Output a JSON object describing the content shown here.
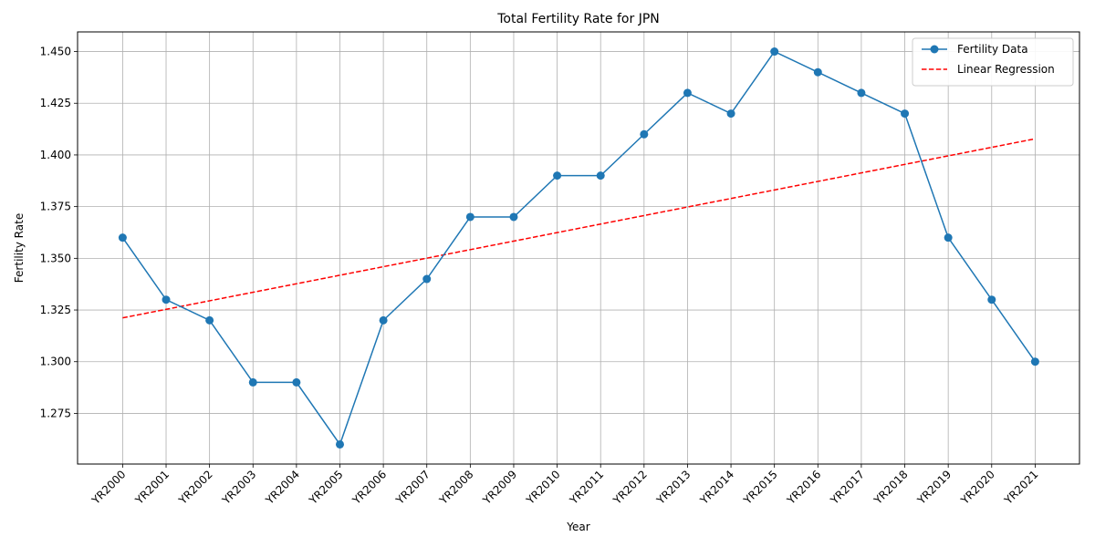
{
  "chart_data": {
    "type": "line",
    "title": "Total Fertility Rate for JPN",
    "xlabel": "Year",
    "ylabel": "Fertility Rate",
    "categories": [
      "YR2000",
      "YR2001",
      "YR2002",
      "YR2003",
      "YR2004",
      "YR2005",
      "YR2006",
      "YR2007",
      "YR2008",
      "YR2009",
      "YR2010",
      "YR2011",
      "YR2012",
      "YR2013",
      "YR2014",
      "YR2015",
      "YR2016",
      "YR2017",
      "YR2018",
      "YR2019",
      "YR2020",
      "YR2021"
    ],
    "series": [
      {
        "name": "Fertility Data",
        "color": "#1f77b4",
        "style": "solid-with-circle-markers",
        "values": [
          1.36,
          1.33,
          1.32,
          1.29,
          1.29,
          1.26,
          1.32,
          1.34,
          1.37,
          1.37,
          1.39,
          1.39,
          1.41,
          1.43,
          1.42,
          1.45,
          1.44,
          1.43,
          1.42,
          1.36,
          1.33,
          1.3
        ]
      },
      {
        "name": "Linear Regression",
        "color": "#ff0000",
        "style": "dashed",
        "start": 1.3212,
        "end": 1.4078
      }
    ],
    "ylim": [
      1.2505,
      1.4595
    ],
    "yticks": [
      "1.275",
      "1.300",
      "1.325",
      "1.350",
      "1.375",
      "1.400",
      "1.425",
      "1.450"
    ],
    "grid": true,
    "legend_position": "top-right"
  }
}
